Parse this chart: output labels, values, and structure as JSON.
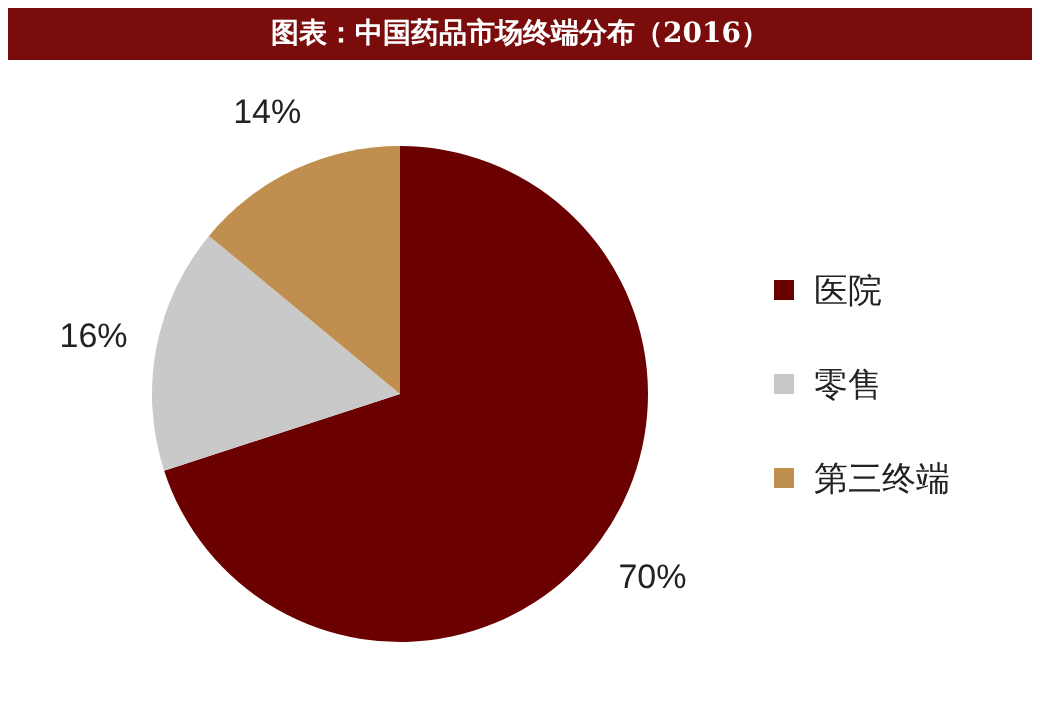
{
  "chart_data": {
    "type": "pie",
    "title": "图表：中国药品市场终端分布（2016）",
    "categories": [
      "医院",
      "零售",
      "第三终端"
    ],
    "values": [
      70,
      16,
      14
    ],
    "colors": [
      "#6b0000",
      "#c9c9c9",
      "#c08e4e"
    ],
    "value_labels": [
      "70%",
      "16%",
      "14%"
    ],
    "legend": "right"
  }
}
